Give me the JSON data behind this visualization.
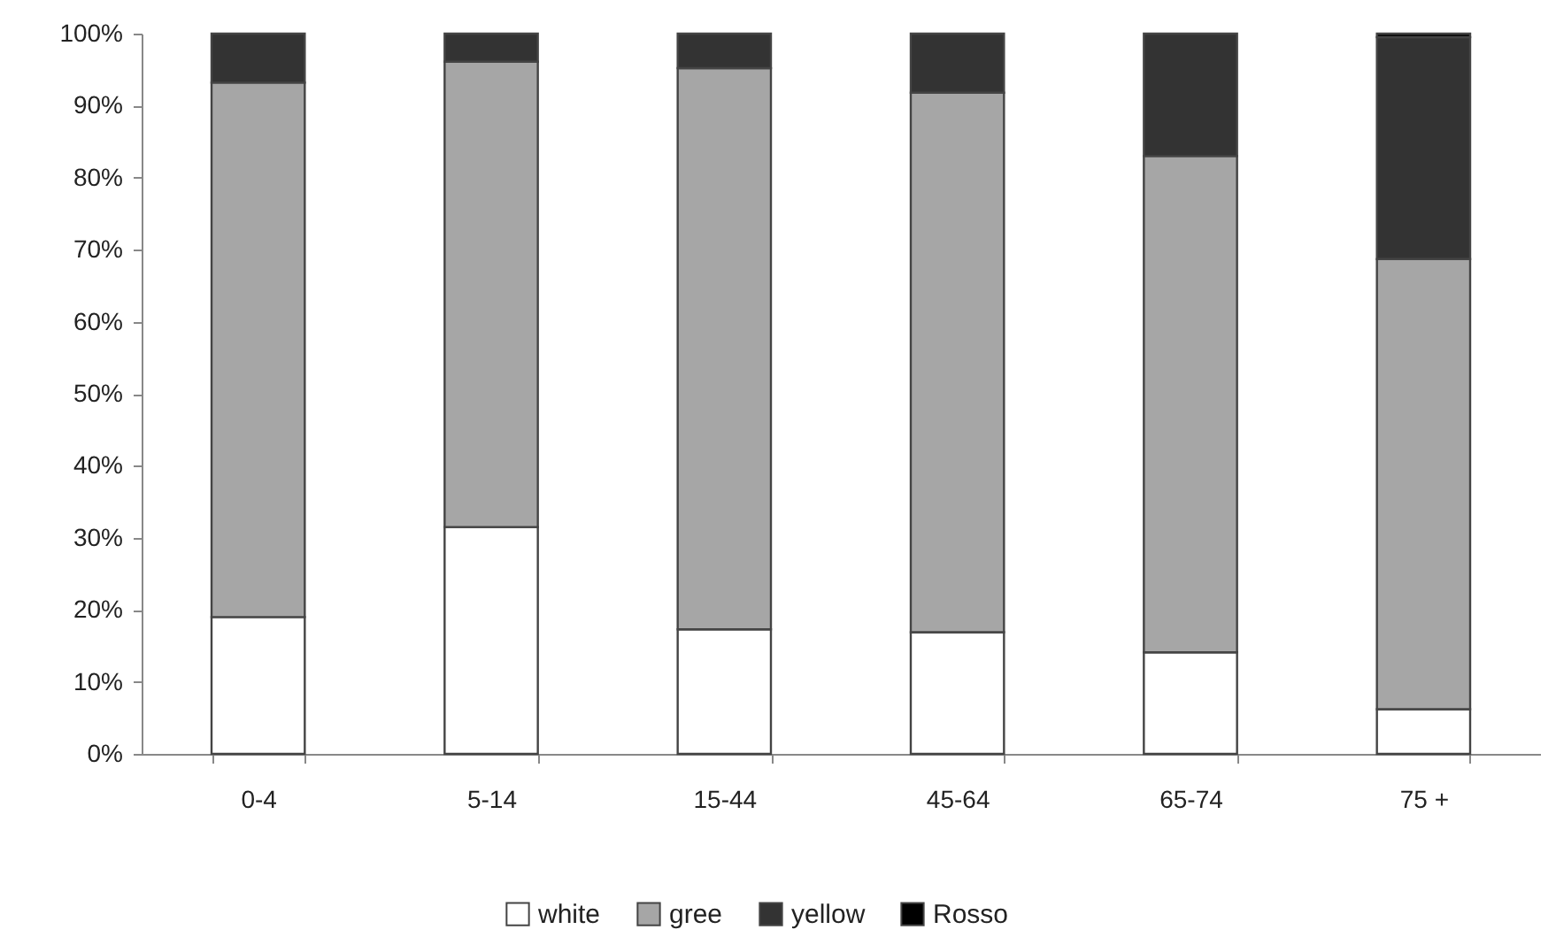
{
  "chart_data": {
    "type": "bar",
    "stacked": true,
    "categories": [
      "0-4",
      "5-14",
      "15-44",
      "45-64",
      "65-74",
      "75 +"
    ],
    "series": [
      {
        "name": "white",
        "color": "#ffffff",
        "values": [
          19.0,
          31.5,
          17.3,
          16.9,
          14.1,
          6.2
        ]
      },
      {
        "name": "gree",
        "color": "#a6a6a6",
        "values": [
          74.2,
          64.6,
          77.9,
          74.9,
          68.9,
          62.5
        ]
      },
      {
        "name": "yellow",
        "color": "#333333",
        "values": [
          6.8,
          3.9,
          4.8,
          8.2,
          17.0,
          30.8
        ]
      },
      {
        "name": "Rosso",
        "color": "#000000",
        "values": [
          null,
          null,
          null,
          null,
          null,
          0.5
        ]
      }
    ],
    "ylim": [
      0,
      100
    ],
    "yticks": [
      {
        "value": 0,
        "label": "0%"
      },
      {
        "value": 10,
        "label": "10%"
      },
      {
        "value": 20,
        "label": "20%"
      },
      {
        "value": 30,
        "label": "30%"
      },
      {
        "value": 40,
        "label": "40%"
      },
      {
        "value": 50,
        "label": "50%"
      },
      {
        "value": 60,
        "label": "60%"
      },
      {
        "value": 70,
        "label": "70%"
      },
      {
        "value": 80,
        "label": "80%"
      },
      {
        "value": 90,
        "label": "90%"
      },
      {
        "value": 100,
        "label": "100%"
      }
    ],
    "grid": false,
    "legend": "bottom"
  }
}
